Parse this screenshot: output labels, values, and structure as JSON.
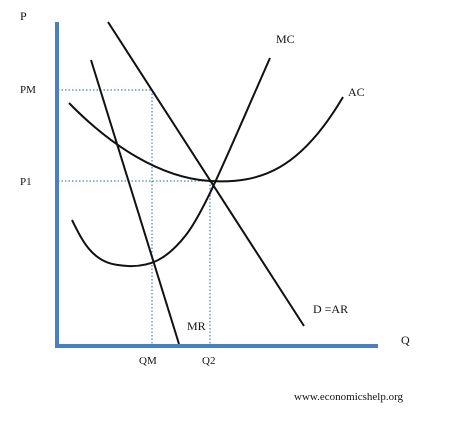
{
  "labels": {
    "y_axis": "P",
    "x_axis": "Q",
    "pm": "PM",
    "p1": "P1",
    "qm": "QM",
    "q2": "Q2",
    "mc": "MC",
    "ac": "AC",
    "mr": "MR",
    "demand": "D =AR"
  },
  "credit": "www.economicshelp.org",
  "colors": {
    "axis": "#4a80c2",
    "guide": "#4a80c2",
    "curve": "#111111",
    "text": "#111111"
  }
}
